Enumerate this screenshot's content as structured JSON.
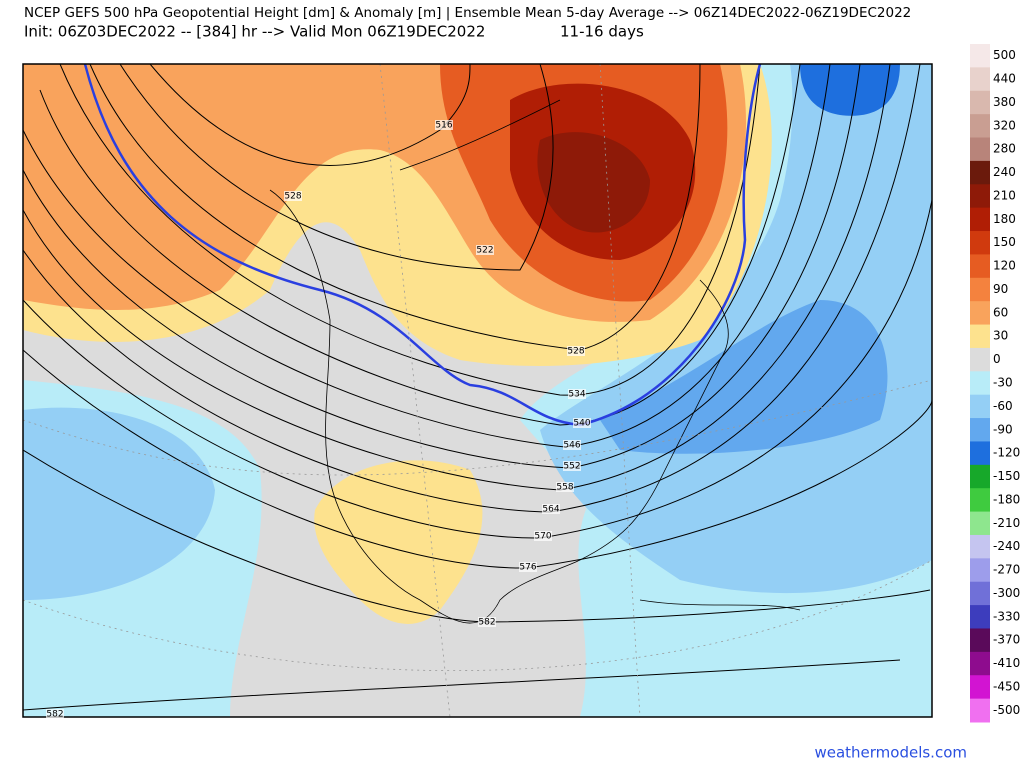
{
  "header": {
    "title": "NCEP GEFS 500 hPa Geopotential Height [dm] & Anomaly [m] | Ensemble Mean 5-day Average --> 06Z14DEC2022-06Z19DEC2022",
    "subtitle": "Init: 06Z03DEC2022 -- [384] hr --> Valid Mon 06Z19DEC2022",
    "period": "11-16 days"
  },
  "contour_labels": [
    516,
    522,
    528,
    528,
    534,
    540,
    546,
    552,
    558,
    564,
    570,
    576,
    582,
    582
  ],
  "colorbar": [
    {
      "value": 500,
      "color": "#f5e8e8"
    },
    {
      "value": 440,
      "color": "#e8d2cc"
    },
    {
      "value": 380,
      "color": "#d9b8ae"
    },
    {
      "value": 320,
      "color": "#c99e92"
    },
    {
      "value": 280,
      "color": "#b8847a"
    },
    {
      "value": 240,
      "color": "#6b1a0c"
    },
    {
      "value": 210,
      "color": "#8e1a08"
    },
    {
      "value": 180,
      "color": "#b01e05"
    },
    {
      "value": 150,
      "color": "#d03a0e"
    },
    {
      "value": 120,
      "color": "#e65c22"
    },
    {
      "value": 90,
      "color": "#f4823e"
    },
    {
      "value": 60,
      "color": "#f9a35c"
    },
    {
      "value": 30,
      "color": "#fde28e"
    },
    {
      "value": 0,
      "color": "#dcdcdc"
    },
    {
      "value": -30,
      "color": "#b8ecf8"
    },
    {
      "value": -60,
      "color": "#94cff5"
    },
    {
      "value": -90,
      "color": "#62a8ee"
    },
    {
      "value": -120,
      "color": "#1e6fde"
    },
    {
      "value": -150,
      "color": "#17a82a"
    },
    {
      "value": -180,
      "color": "#3fcb3f"
    },
    {
      "value": -210,
      "color": "#8ee68e"
    },
    {
      "value": -240,
      "color": "#c5c5f0"
    },
    {
      "value": -270,
      "color": "#9d9deb"
    },
    {
      "value": -300,
      "color": "#7070d8"
    },
    {
      "value": -330,
      "color": "#3d3dbd"
    },
    {
      "value": -370,
      "color": "#5a0a5a"
    },
    {
      "value": -410,
      "color": "#8e0c8e"
    },
    {
      "value": -450,
      "color": "#d214d2"
    },
    {
      "value": -500,
      "color": "#f070f0"
    }
  ],
  "footer": "weathermodels.com"
}
